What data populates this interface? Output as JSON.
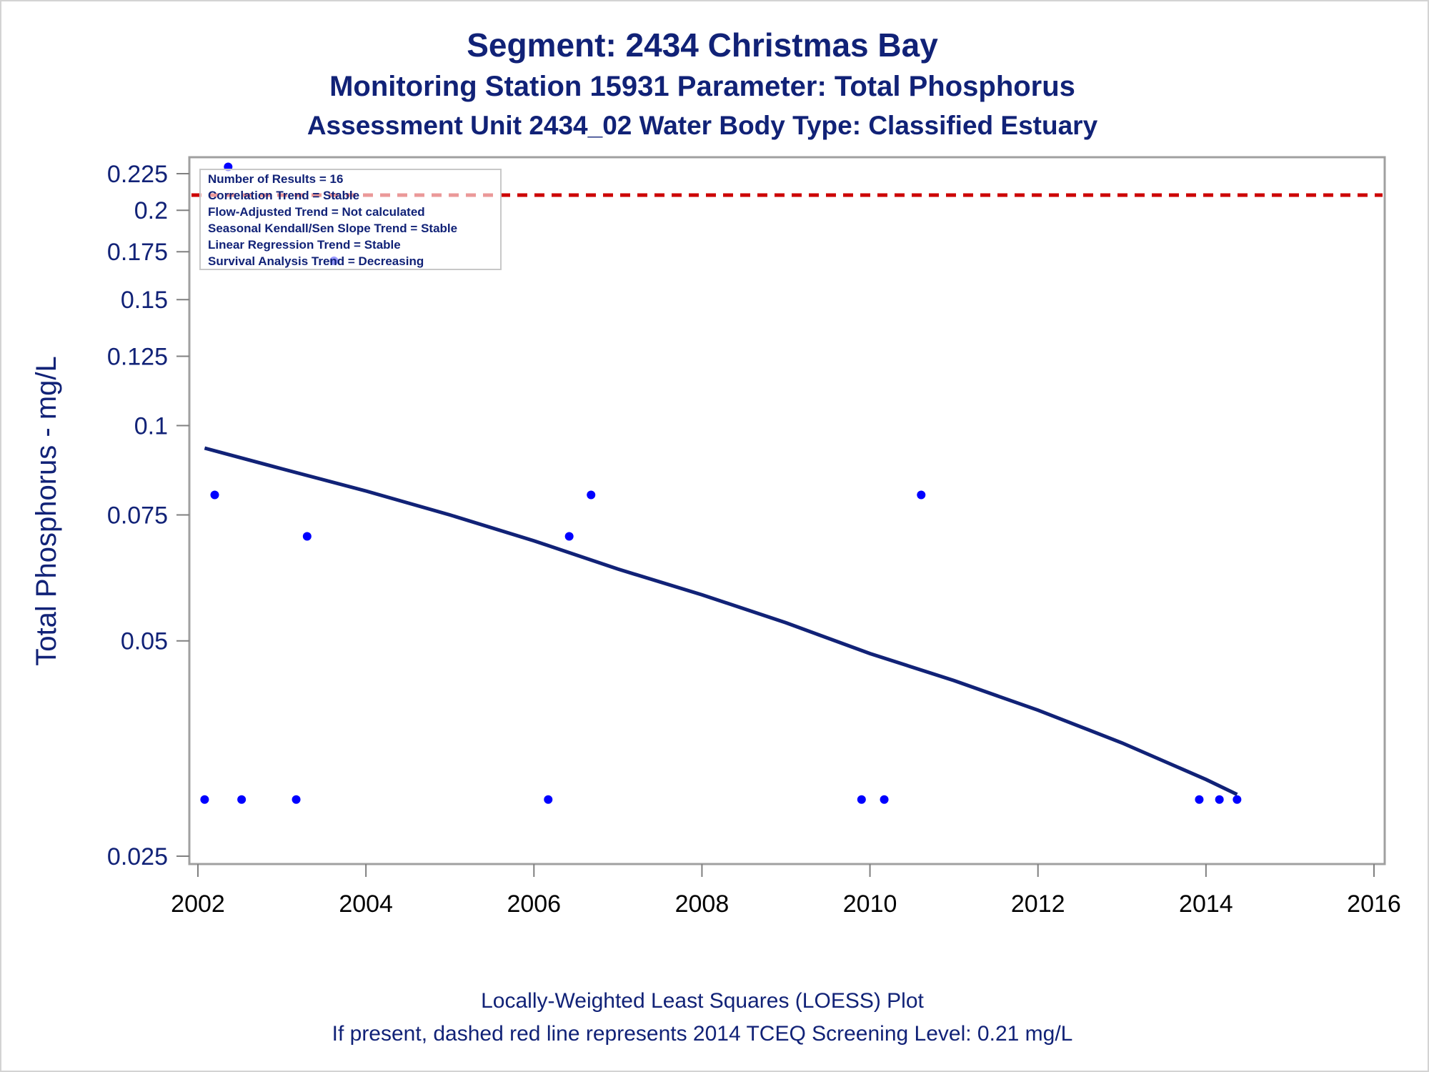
{
  "titles": {
    "line1": "Segment: 2434  Christmas Bay",
    "line2": "Monitoring Station 15931 Parameter: Total Phosphorus",
    "line3": "Assessment Unit 2434_02   Water Body Type: Classified Estuary"
  },
  "footnotes": {
    "line1": "Locally-Weighted Least Squares (LOESS) Plot",
    "line2": "If present, dashed red line represents 2014 TCEQ Screening Level: 0.21 mg/L"
  },
  "legend": {
    "lines": [
      "Number of Results = 16",
      "Correlation Trend = Stable",
      "Flow-Adjusted Trend = Not calculated",
      "Seasonal Kendall/Sen Slope Trend = Stable",
      "Linear Regression Trend = Stable",
      "Survival Analysis Trend = Decreasing"
    ]
  },
  "colors": {
    "points": "#0000ff",
    "loess": "#112277",
    "screening": "#cc0000",
    "text": "#112277"
  },
  "chart_data": {
    "type": "scatter",
    "y_scale": "log",
    "xlabel": "",
    "ylabel": "Total Phosphorus - mg/L",
    "xlim": [
      2002,
      2016
    ],
    "ylim": [
      0.025,
      0.235
    ],
    "x_ticks": [
      2002,
      2004,
      2006,
      2008,
      2010,
      2012,
      2014,
      2016
    ],
    "y_ticks": [
      0.025,
      0.05,
      0.075,
      0.1,
      0.125,
      0.15,
      0.175,
      0.2,
      0.225
    ],
    "y_tick_labels": [
      "0.025",
      "0.05",
      "0.075",
      "0.1",
      "0.125",
      "0.15",
      "0.175",
      "0.2",
      "0.225"
    ],
    "screening_level": 0.21,
    "series": [
      {
        "name": "Total Phosphorus",
        "x": [
          2002.08,
          2002.2,
          2002.36,
          2002.52,
          2003.17,
          2003.3,
          2003.62,
          2006.17,
          2006.42,
          2006.68,
          2009.9,
          2010.17,
          2010.61,
          2013.92,
          2014.16,
          2014.37
        ],
        "y": [
          0.03,
          0.08,
          0.23,
          0.03,
          0.03,
          0.07,
          0.17,
          0.03,
          0.07,
          0.08,
          0.03,
          0.03,
          0.08,
          0.03,
          0.03,
          0.03
        ]
      },
      {
        "name": "LOESS",
        "x": [
          2002.08,
          2003,
          2004,
          2005,
          2006,
          2007,
          2008,
          2009,
          2010,
          2011,
          2012,
          2013,
          2014,
          2014.37
        ],
        "y": [
          0.093,
          0.087,
          0.081,
          0.075,
          0.069,
          0.063,
          0.058,
          0.053,
          0.048,
          0.044,
          0.04,
          0.036,
          0.032,
          0.0305
        ]
      }
    ]
  }
}
